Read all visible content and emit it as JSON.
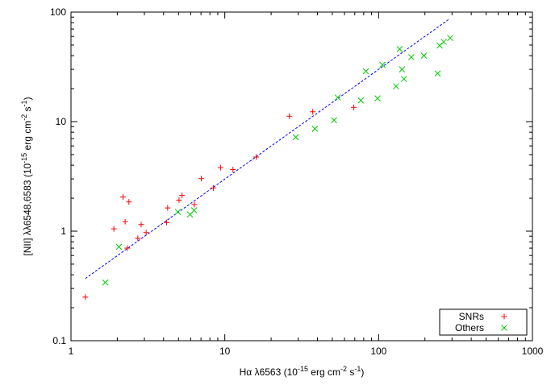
{
  "chart_data": {
    "type": "scatter",
    "title": "",
    "xlabel": {
      "main": "Hα λ6563 (10",
      "exp1": "-15",
      "mid": " erg cm",
      "exp2": "-2",
      "tail": " s",
      "exp3": "-1",
      "end": ")"
    },
    "ylabel": {
      "main": "[NII] λλ6548,6583 (10",
      "exp1": "-15",
      "mid": " erg cm",
      "exp2": "-2",
      "tail": " s",
      "exp3": "-1",
      "end": ")"
    },
    "xscale": "log",
    "yscale": "log",
    "xlim": [
      1,
      1000
    ],
    "ylim": [
      0.1,
      100
    ],
    "xticks": [
      1,
      10,
      100,
      1000
    ],
    "xtick_labels": [
      "1",
      "10",
      "100",
      "1000"
    ],
    "yticks": [
      0.1,
      1,
      10,
      100
    ],
    "ytick_labels": [
      "0.1",
      "1",
      "10",
      "100"
    ],
    "grid": false,
    "legend_position": "bottom-right",
    "series": [
      {
        "name": "SNRs",
        "marker": "+",
        "color": "#ff0000",
        "points": [
          [
            1.24,
            0.25
          ],
          [
            1.9,
            1.05
          ],
          [
            2.18,
            2.05
          ],
          [
            2.25,
            1.22
          ],
          [
            2.32,
            0.7
          ],
          [
            2.38,
            1.85
          ],
          [
            2.72,
            0.86
          ],
          [
            2.86,
            1.15
          ],
          [
            3.08,
            0.97
          ],
          [
            4.18,
            1.2
          ],
          [
            4.25,
            1.63
          ],
          [
            5.04,
            1.92
          ],
          [
            5.27,
            2.12
          ],
          [
            6.34,
            1.75
          ],
          [
            7.03,
            3.02
          ],
          [
            8.42,
            2.48
          ],
          [
            9.38,
            3.8
          ],
          [
            11.3,
            3.65
          ],
          [
            16.0,
            4.75
          ],
          [
            26.3,
            11.2
          ],
          [
            37.3,
            12.3
          ],
          [
            68.9,
            13.5
          ]
        ]
      },
      {
        "name": "Others",
        "marker": "x",
        "color": "#00cc00",
        "points": [
          [
            1.67,
            0.34
          ],
          [
            2.05,
            0.72
          ],
          [
            4.95,
            1.5
          ],
          [
            5.94,
            1.42
          ],
          [
            6.32,
            1.55
          ],
          [
            28.9,
            7.2
          ],
          [
            38.5,
            8.6
          ],
          [
            51.3,
            10.3
          ],
          [
            54.2,
            16.6
          ],
          [
            76.6,
            15.6
          ],
          [
            82.6,
            28.8
          ],
          [
            98.4,
            16.3
          ],
          [
            106,
            33
          ],
          [
            130,
            21
          ],
          [
            137,
            46
          ],
          [
            142,
            30
          ],
          [
            146,
            24.5
          ],
          [
            163,
            38.8
          ],
          [
            197,
            40
          ],
          [
            242,
            27.5
          ],
          [
            249,
            49.5
          ],
          [
            265,
            53.5
          ],
          [
            292,
            58
          ]
        ]
      }
    ],
    "fit_line": {
      "style": "dashed",
      "color": "#0000ff",
      "points": [
        [
          1.24,
          0.37
        ],
        [
          290,
          87
        ]
      ]
    }
  }
}
